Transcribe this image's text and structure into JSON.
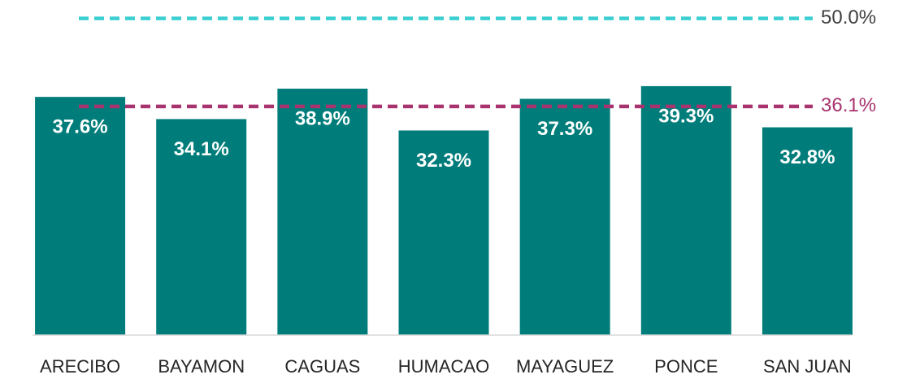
{
  "chart_data": {
    "type": "bar",
    "categories": [
      "ARECIBO",
      "BAYAMON",
      "CAGUAS",
      "HUMACAO",
      "MAYAGUEZ",
      "PONCE",
      "SAN JUAN"
    ],
    "values": [
      37.6,
      34.1,
      38.9,
      32.3,
      37.3,
      39.3,
      32.8
    ],
    "value_labels": [
      "37.6%",
      "34.1%",
      "38.9%",
      "32.3%",
      "37.3%",
      "39.3%",
      "32.8%"
    ],
    "color": "#007d7a",
    "ylim": [
      0,
      52
    ],
    "reference_lines": [
      {
        "value": 50.0,
        "label": "50.0%",
        "color": "#3ccfd1"
      },
      {
        "value": 36.1,
        "label": "36.1%",
        "color": "#a8336e"
      }
    ]
  }
}
